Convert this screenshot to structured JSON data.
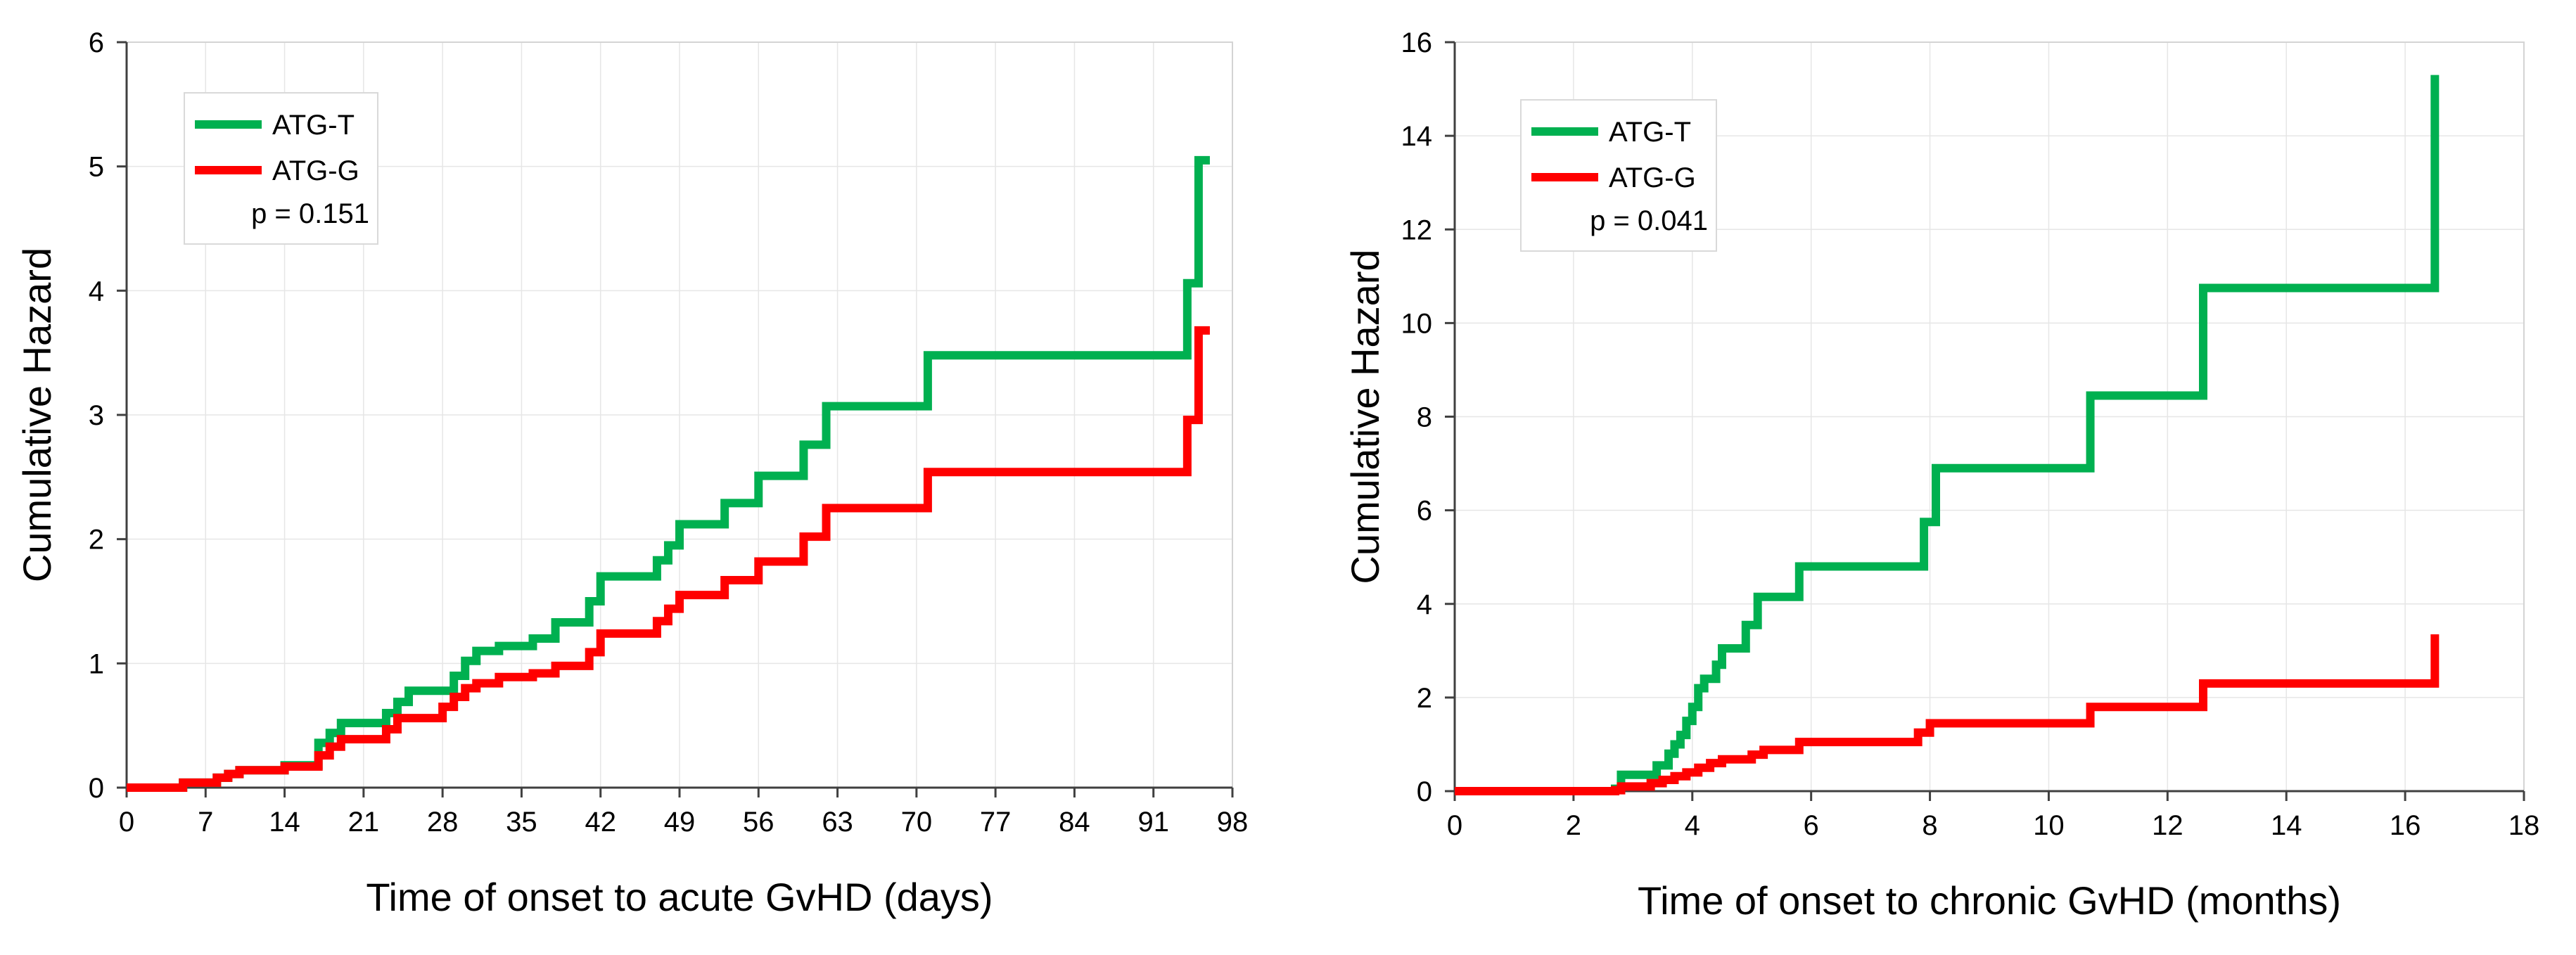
{
  "chart_data": [
    {
      "type": "line",
      "step": true,
      "ylabel": "Cumulative Hazard",
      "xlabel": "Time of onset to acute GvHD (days)",
      "xlim": [
        0,
        98
      ],
      "ylim": [
        0,
        6
      ],
      "xticks": [
        0,
        7,
        14,
        21,
        28,
        35,
        42,
        49,
        56,
        63,
        70,
        77,
        84,
        91,
        98
      ],
      "yticks": [
        0,
        1,
        2,
        3,
        4,
        5,
        6
      ],
      "xtick_labels": [
        "0",
        "7",
        "14",
        "21",
        "28",
        "35",
        "42",
        "49",
        "56",
        "63",
        "70",
        "77",
        "84",
        "91",
        "98"
      ],
      "ytick_labels": [
        "0",
        "1",
        "2",
        "3",
        "4",
        "5",
        "6"
      ],
      "grid": true,
      "legend": {
        "position": "top-left",
        "annotation": "p = 0.151"
      },
      "series": [
        {
          "name": "ATG-T",
          "color": "#00b050",
          "x": [
            0,
            5,
            8,
            9,
            10,
            14,
            17,
            18,
            19,
            23,
            24,
            25,
            29,
            30,
            31,
            33,
            36,
            38,
            41,
            42,
            47,
            48,
            49,
            53,
            56,
            60,
            62,
            71,
            94,
            95,
            96
          ],
          "y": [
            0,
            0.04,
            0.08,
            0.11,
            0.14,
            0.18,
            0.36,
            0.44,
            0.52,
            0.6,
            0.69,
            0.78,
            0.9,
            1.02,
            1.1,
            1.14,
            1.2,
            1.33,
            1.5,
            1.7,
            1.83,
            1.95,
            2.12,
            2.29,
            2.51,
            2.76,
            3.07,
            3.48,
            4.06,
            5.05,
            5.05
          ]
        },
        {
          "name": "ATG-G",
          "color": "#ff0000",
          "x": [
            0,
            5,
            8,
            9,
            10,
            14,
            17,
            18,
            19,
            23,
            24,
            28,
            29,
            30,
            31,
            33,
            36,
            38,
            41,
            42,
            47,
            48,
            49,
            53,
            56,
            60,
            62,
            71,
            94,
            95,
            96
          ],
          "y": [
            0,
            0.04,
            0.08,
            0.11,
            0.14,
            0.17,
            0.26,
            0.33,
            0.39,
            0.47,
            0.56,
            0.65,
            0.73,
            0.8,
            0.84,
            0.89,
            0.92,
            0.98,
            1.09,
            1.24,
            1.34,
            1.44,
            1.55,
            1.67,
            1.82,
            2.02,
            2.25,
            2.54,
            2.96,
            3.68,
            3.68
          ]
        }
      ]
    },
    {
      "type": "line",
      "step": true,
      "ylabel": "Cumulative Hazard",
      "xlabel": "Time of onset to chronic GvHD (months)",
      "xlim": [
        0,
        18
      ],
      "ylim": [
        0,
        16
      ],
      "xticks": [
        0,
        2,
        4,
        6,
        8,
        10,
        12,
        14,
        16,
        18
      ],
      "yticks": [
        0,
        2,
        4,
        6,
        8,
        10,
        12,
        14,
        16
      ],
      "xtick_labels": [
        "0",
        "2",
        "4",
        "6",
        "8",
        "10",
        "12",
        "14",
        "16",
        "18"
      ],
      "ytick_labels": [
        "0",
        "2",
        "4",
        "6",
        "8",
        "10",
        "12",
        "14",
        "16"
      ],
      "grid": true,
      "legend": {
        "position": "top-left",
        "annotation": "p = 0.041"
      },
      "series": [
        {
          "name": "ATG-T",
          "color": "#00b050",
          "x": [
            0,
            2.7,
            2.8,
            3.4,
            3.6,
            3.7,
            3.8,
            3.9,
            4.0,
            4.1,
            4.2,
            4.4,
            4.5,
            4.9,
            5.1,
            5.3,
            5.8,
            7.9,
            8.1,
            10.7,
            12.6,
            16.5,
            16.5
          ],
          "y": [
            0,
            0.05,
            0.35,
            0.55,
            0.8,
            1.0,
            1.2,
            1.5,
            1.8,
            2.2,
            2.4,
            2.7,
            3.05,
            3.55,
            4.15,
            4.15,
            4.8,
            5.75,
            6.9,
            8.45,
            10.75,
            15.3,
            15.3
          ]
        },
        {
          "name": "ATG-G",
          "color": "#ff0000",
          "x": [
            0,
            2.7,
            2.8,
            3.3,
            3.5,
            3.7,
            3.9,
            4.1,
            4.3,
            4.5,
            5.0,
            5.2,
            5.8,
            7.8,
            8.0,
            10.7,
            12.6,
            16.5,
            16.5
          ],
          "y": [
            0,
            0.02,
            0.1,
            0.17,
            0.24,
            0.32,
            0.4,
            0.5,
            0.6,
            0.68,
            0.78,
            0.88,
            1.05,
            1.25,
            1.45,
            1.8,
            2.3,
            3.35,
            3.35
          ]
        }
      ]
    }
  ]
}
